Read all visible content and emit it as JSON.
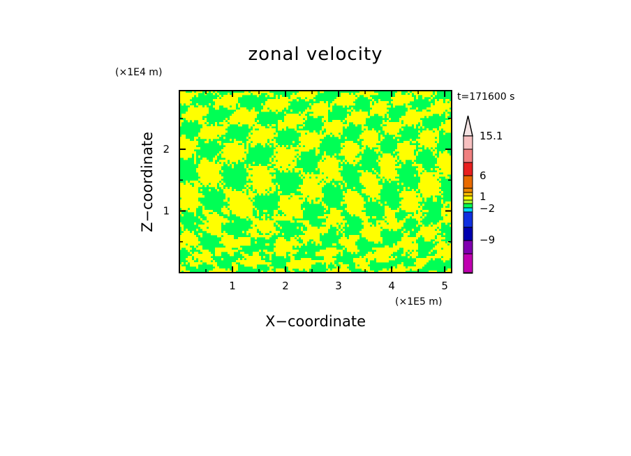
{
  "chart_data": {
    "type": "heatmap",
    "title": "zonal velocity",
    "xlabel": "X−coordinate",
    "ylabel": "Z−coordinate",
    "x_unit": "(×1E5 m)",
    "y_unit": "(×1E4 m)",
    "time_label": "t=171600 s",
    "xlim": [
      0,
      5.13
    ],
    "ylim": [
      0,
      2.95
    ],
    "x_ticks": [
      1,
      2,
      3,
      4,
      5
    ],
    "x_tick_labels": [
      "1",
      "2",
      "3",
      "4",
      "5"
    ],
    "y_ticks": [
      1,
      2
    ],
    "y_tick_labels": [
      "1",
      "2"
    ],
    "field_colors": {
      "dominant_positive": "#ffff00",
      "dominant_negative": "#00ff55"
    },
    "colorbar": {
      "levels_top_to_bottom": [
        "#f7c0c0",
        "#f08080",
        "#e82020",
        "#e86a00",
        "#ee8800",
        "#ffc000",
        "#ffff00",
        "#b0ff30",
        "#00ff55",
        "#00d8ff",
        "#1030e0",
        "#0000b0",
        "#8000b0",
        "#c000b0",
        "#f000b0"
      ],
      "extend_max_color": "#f4e4e4",
      "labels": [
        {
          "text": "15.1",
          "value": 15.1
        },
        {
          "text": "6",
          "value": 6
        },
        {
          "text": "1",
          "value": 1
        },
        {
          "text": "−2",
          "value": -2
        },
        {
          "text": "−9",
          "value": -9
        }
      ]
    },
    "grid": false,
    "legend": "colorbar-right"
  }
}
